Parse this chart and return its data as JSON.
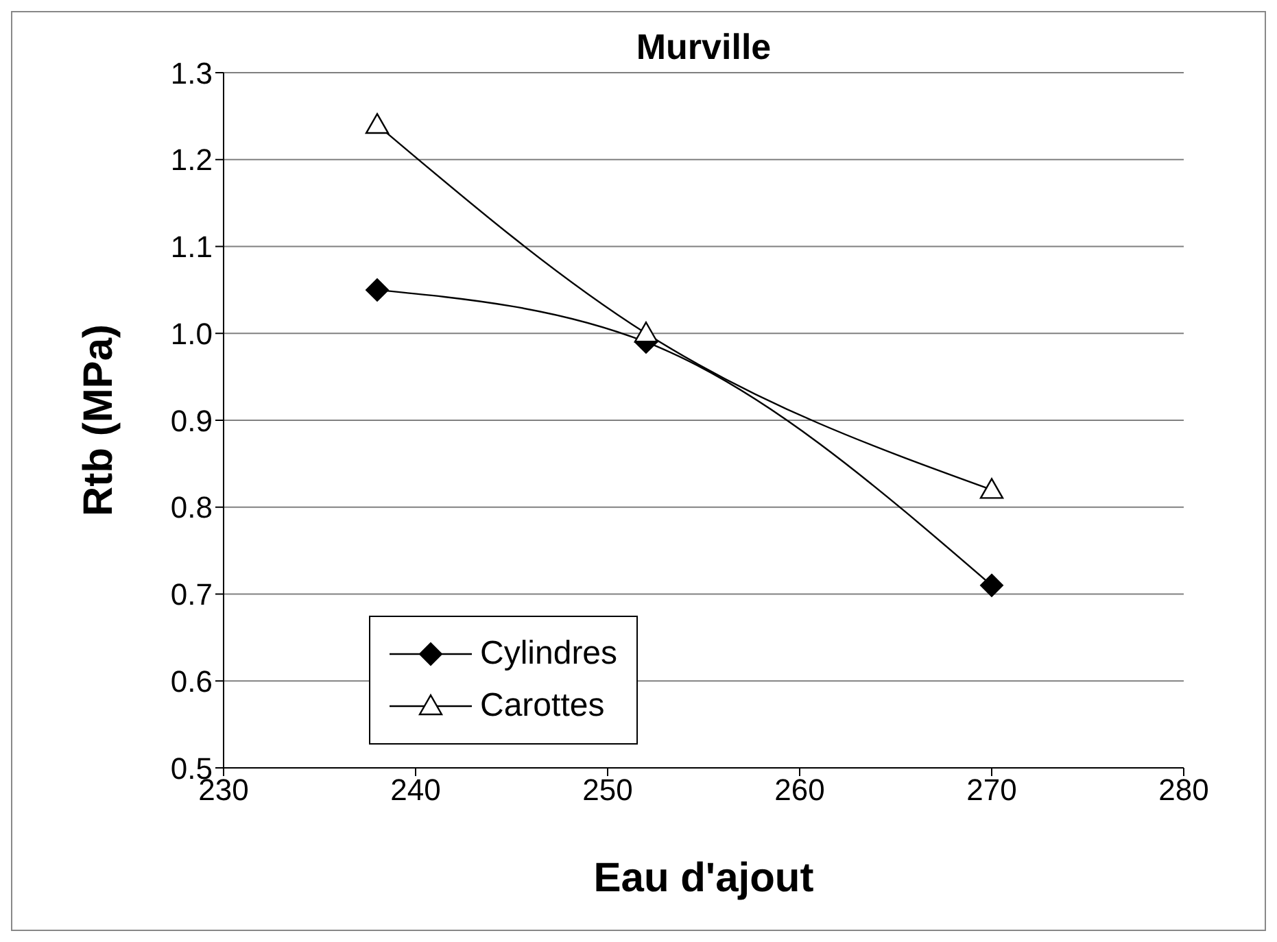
{
  "chart_data": {
    "type": "line",
    "title": "Murville",
    "xlabel": "Eau d'ajout",
    "ylabel": "Rtb (MPa)",
    "x": [
      238,
      252,
      270
    ],
    "series": [
      {
        "name": "Cylindres",
        "color": "#000000",
        "marker": "diamond",
        "values": [
          1.05,
          0.99,
          0.71
        ]
      },
      {
        "name": "Carottes",
        "color": "#000000",
        "marker": "triangle",
        "values": [
          1.24,
          1.0,
          0.82
        ]
      }
    ],
    "xlim": [
      230,
      280
    ],
    "xticks": [
      230,
      240,
      250,
      260,
      270,
      280
    ],
    "ylim": [
      0.5,
      1.3
    ],
    "yticks": [
      0.5,
      0.6,
      0.7,
      0.8,
      0.9,
      {
        "value": 1,
        "label": "1.0"
      },
      1.1,
      1.2,
      1.3
    ],
    "grid": "y",
    "legend": "bottom left",
    "line_style": "solid"
  }
}
